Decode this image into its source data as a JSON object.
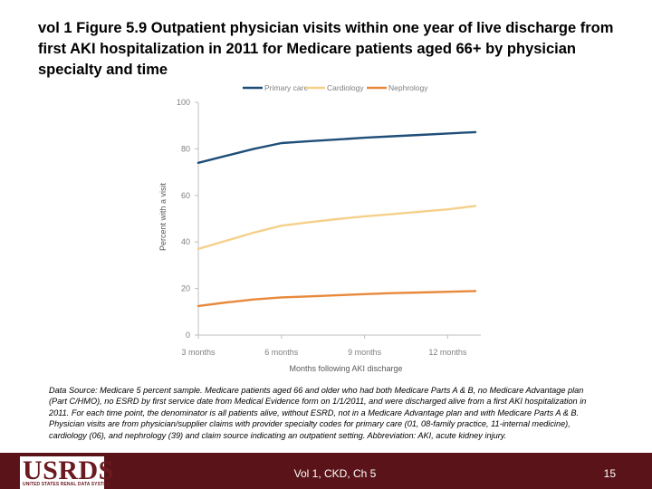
{
  "slide": {
    "title": "vol 1 Figure 5.9  Outpatient physician visits within one year of live discharge from first AKI hospitalization in 2011 for Medicare patients aged 66+ by physician specialty and time",
    "data_source": "Data Source: Medicare 5 percent sample. Medicare patients aged 66 and older who had both Medicare Parts A & B, no Medicare Advantage plan (Part C/HMO), no ESRD by first service date from Medical Evidence form on 1/1/2011, and were discharged alive from a first AKI hospitalization in 2011. For each time point, the denominator is all patients alive, without ESRD, not in a Medicare Advantage plan and with Medicare Parts A & B. Physician visits are from physician/supplier claims with provider specialty codes for primary care (01, 08-family practice, 11-internal medicine), cardiology (06), and nephrology (39) and claim source indicating an outpatient setting. Abbreviation: AKI, acute kidney injury."
  },
  "footer": {
    "logo_text": "USRDS",
    "logo_subtitle": "UNITED STATES RENAL DATA SYSTEM",
    "center_text": "Vol 1, CKD, Ch 5",
    "page_number": "15"
  },
  "chart_data": {
    "type": "line",
    "title": "",
    "xlabel": "Months following AKI discharge",
    "ylabel": "Percent with a visit",
    "ylim": [
      0,
      100
    ],
    "yticks": [
      0,
      20,
      40,
      60,
      80,
      100
    ],
    "xlim": [
      2,
      12
    ],
    "x": [
      2,
      3,
      4,
      5,
      6,
      7,
      8,
      9,
      10,
      11,
      12
    ],
    "xticks": [
      {
        "value": 2,
        "label": "3 months"
      },
      {
        "value": 5,
        "label": "6 months"
      },
      {
        "value": 8,
        "label": "9 months"
      },
      {
        "value": 11,
        "label": "12 months"
      }
    ],
    "grid": false,
    "legend": "top",
    "series": [
      {
        "name": "Primary care",
        "color": "#1f4e79",
        "values": [
          74,
          77,
          80,
          82.5,
          83.3,
          84,
          84.8,
          85.4,
          86,
          86.6,
          87.2
        ]
      },
      {
        "name": "Cardiology",
        "color": "#f5d08a",
        "values": [
          37,
          40.5,
          44,
          47,
          48.5,
          49.8,
          51,
          52,
          53,
          54,
          55.5
        ]
      },
      {
        "name": "Nephrology",
        "color": "#e8883a",
        "values": [
          12.5,
          14,
          15.3,
          16.2,
          16.6,
          17.1,
          17.6,
          18,
          18.3,
          18.6,
          18.9
        ]
      }
    ],
    "colors": {
      "axis": "#bfbfbf",
      "tick_label": "#7f7f7f",
      "axis_label": "#595959"
    }
  }
}
